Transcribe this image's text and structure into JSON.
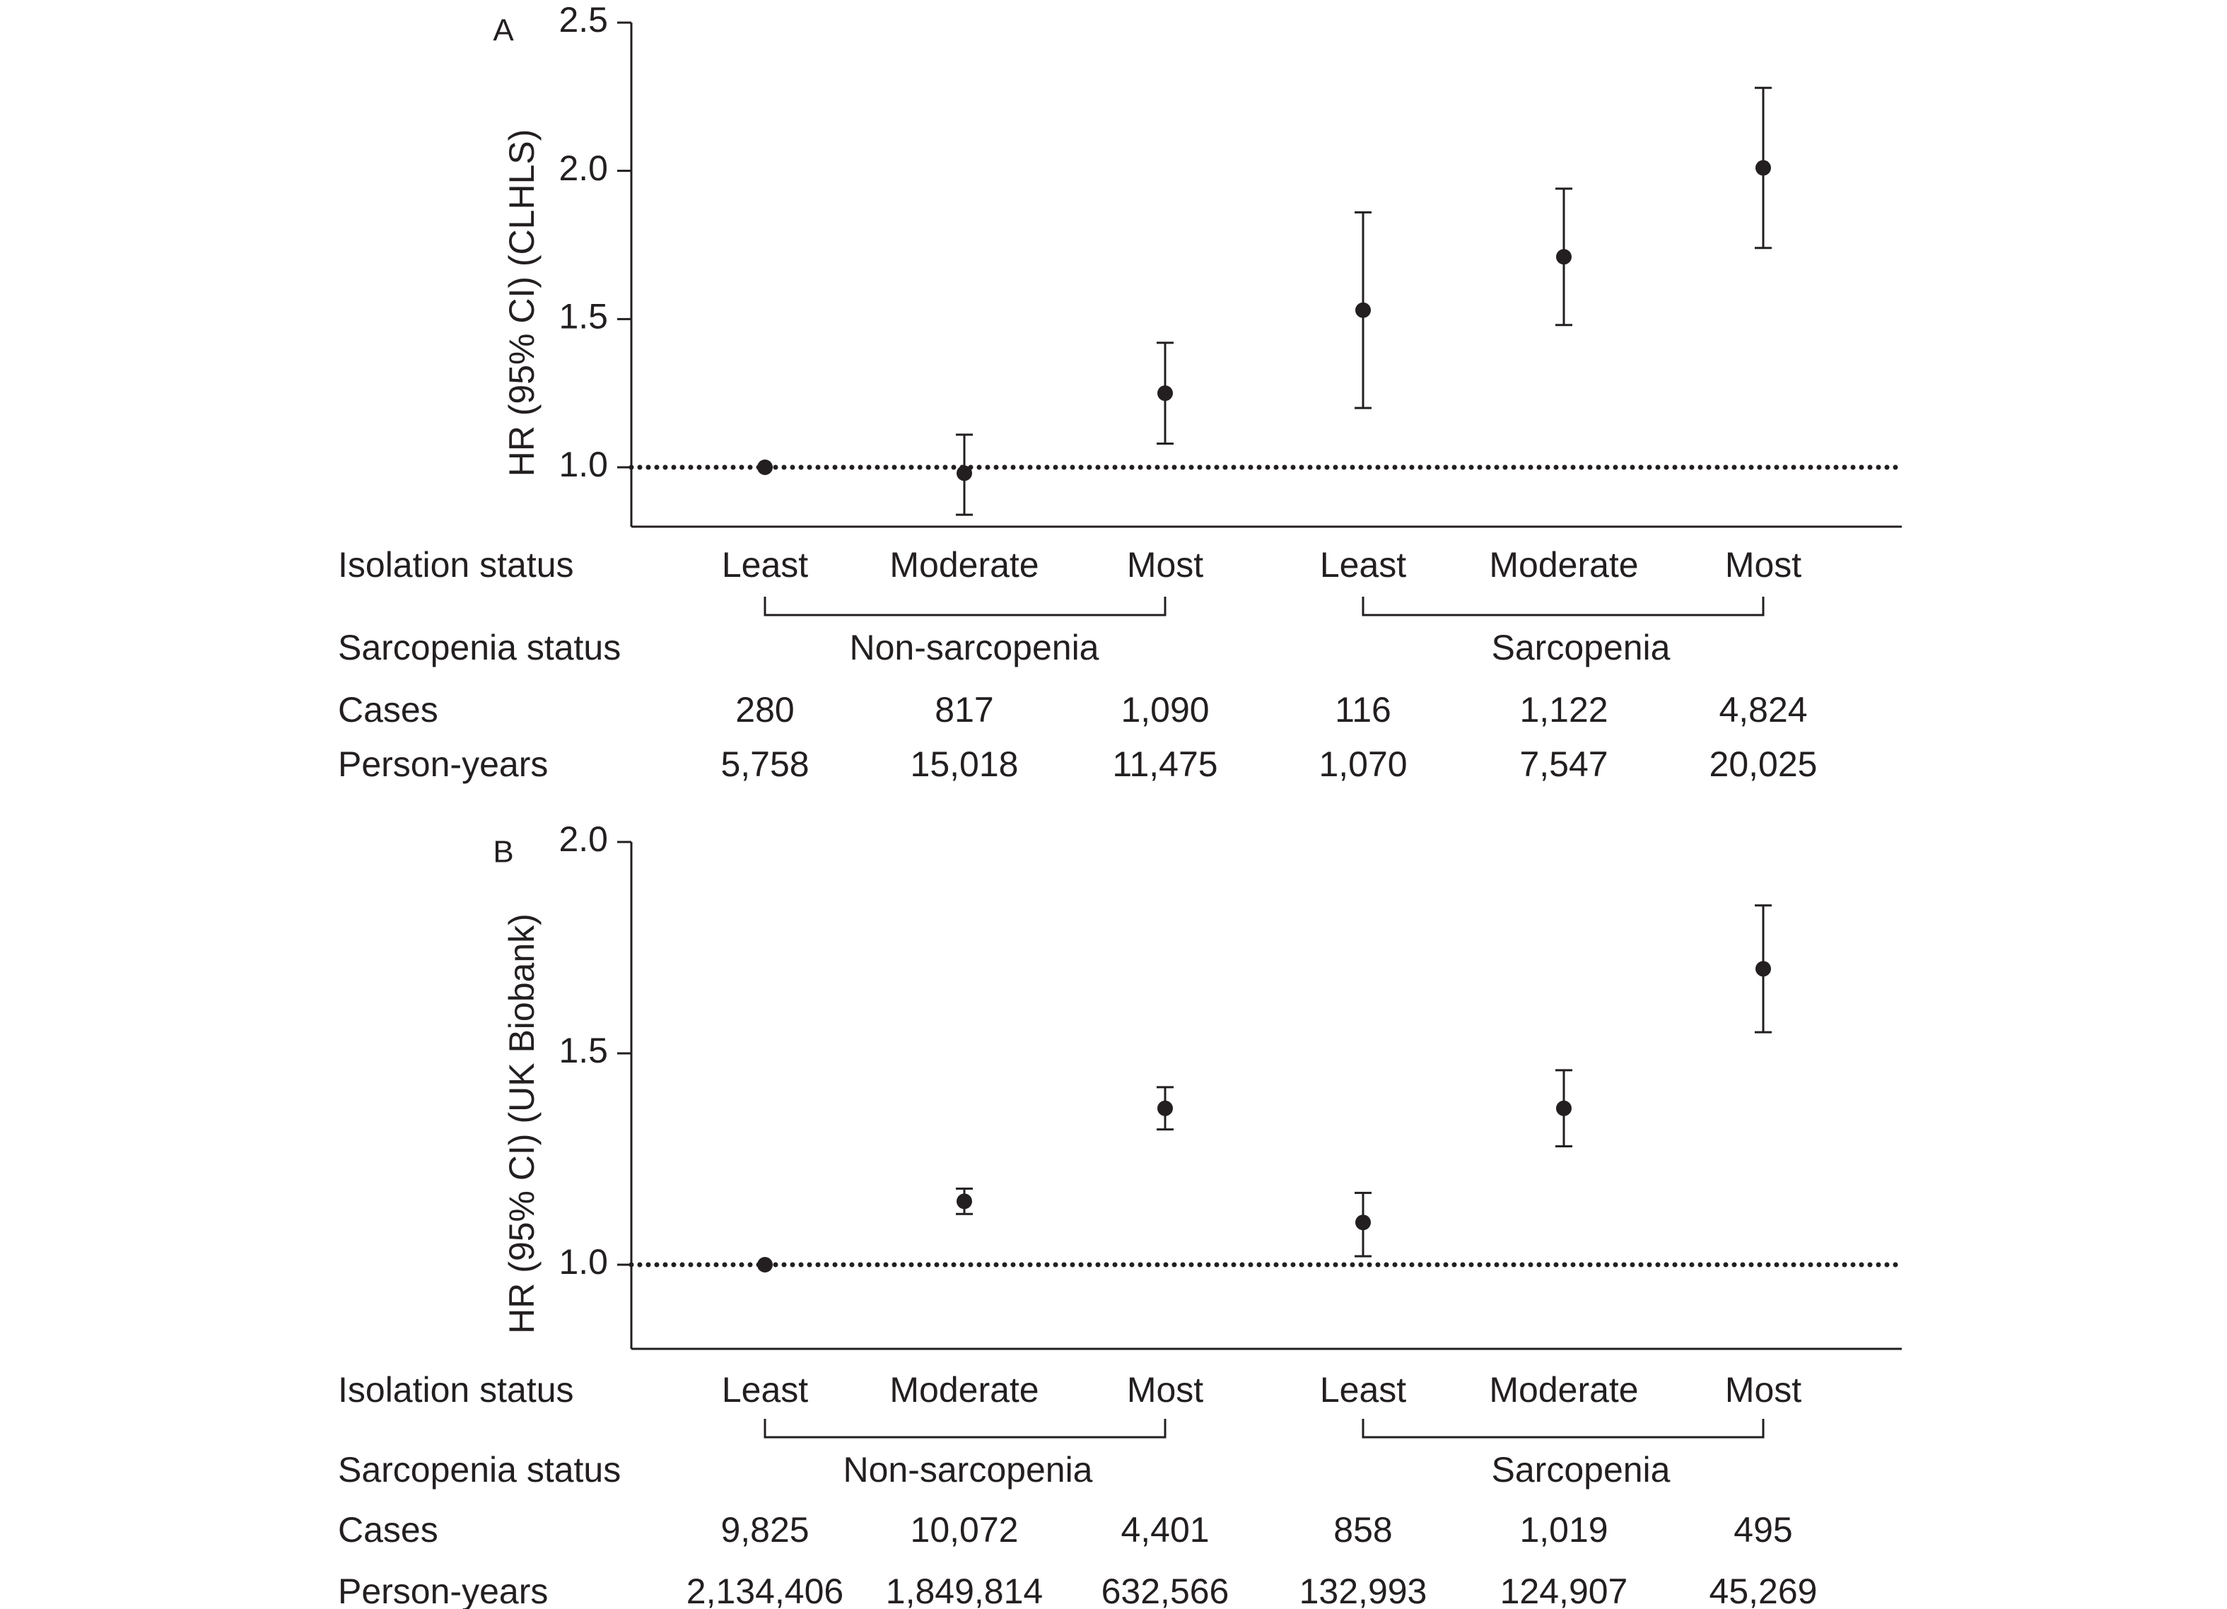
{
  "chart_data": [
    {
      "type": "scatter",
      "panel_label": "A",
      "ylabel": "HR (95% CI) (CLHLS)",
      "ylim": [
        0.8,
        2.5
      ],
      "yticks": [
        "1.0",
        "1.5",
        "2.0",
        "2.5"
      ],
      "reference_line": 1.0,
      "categories": [
        "Least",
        "Moderate",
        "Most",
        "Least",
        "Moderate",
        "Most"
      ],
      "hr": [
        1.0,
        0.98,
        1.25,
        1.53,
        1.71,
        2.01
      ],
      "ci_low": [
        1.0,
        0.84,
        1.08,
        1.2,
        1.48,
        1.74
      ],
      "ci_high": [
        1.0,
        1.11,
        1.42,
        1.86,
        1.94,
        2.28
      ],
      "table": {
        "row_labels": {
          "isolation": "Isolation status",
          "sarcopenia": "Sarcopenia status",
          "cases": "Cases",
          "person_years": "Person-years"
        },
        "groups": [
          "Non-sarcopenia",
          "Sarcopenia"
        ],
        "cases": [
          "280",
          "817",
          "1,090",
          "116",
          "1,122",
          "4,824"
        ],
        "person_years": [
          "5,758",
          "15,018",
          "11,475",
          "1,070",
          "7,547",
          "20,025"
        ]
      }
    },
    {
      "type": "scatter",
      "panel_label": "B",
      "ylabel": "HR (95% CI) (UK Biobank)",
      "ylim": [
        0.8,
        2.0
      ],
      "yticks": [
        "1.0",
        "1.5",
        "2.0"
      ],
      "reference_line": 1.0,
      "categories": [
        "Least",
        "Moderate",
        "Most",
        "Least",
        "Moderate",
        "Most"
      ],
      "hr": [
        1.0,
        1.15,
        1.37,
        1.1,
        1.37,
        1.7
      ],
      "ci_low": [
        1.0,
        1.12,
        1.32,
        1.02,
        1.28,
        1.55
      ],
      "ci_high": [
        1.0,
        1.18,
        1.42,
        1.17,
        1.46,
        1.85
      ],
      "table": {
        "row_labels": {
          "isolation": "Isolation status",
          "sarcopenia": "Sarcopenia status",
          "cases": "Cases",
          "person_years": "Person-years"
        },
        "groups": [
          "Non-sarcopenia",
          "Sarcopenia"
        ],
        "cases": [
          "9,825",
          "10,072",
          "4,401",
          "858",
          "1,019",
          "495"
        ],
        "person_years": [
          "2,134,406",
          "1,849,814",
          "632,566",
          "132,993",
          "124,907",
          "45,269"
        ]
      }
    }
  ],
  "colors": {
    "ink": "#231f20",
    "background": "#ffffff"
  }
}
